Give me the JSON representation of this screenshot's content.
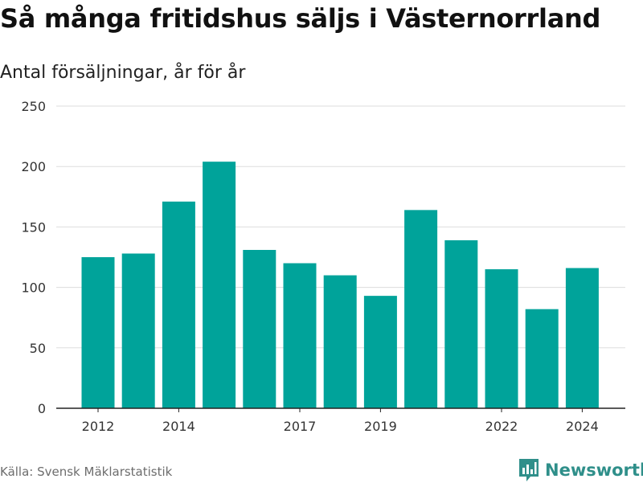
{
  "title": "Så många fritidshus säljs i Västernorrland",
  "subtitle": "Antal försäljningar, år för år",
  "source": "Källa: Svensk Mäklarstatistik",
  "brand": {
    "name": "Newsworthy",
    "icon": "newsworthy-logo-icon"
  },
  "colors": {
    "bar": "#00a39a",
    "grid": "#dddddd",
    "axis": "#222222",
    "brand": "#2f8f8a"
  },
  "chart_data": {
    "type": "bar",
    "categories": [
      "2012",
      "2013",
      "2014",
      "2015",
      "2016",
      "2017",
      "2018",
      "2019",
      "2020",
      "2021",
      "2022",
      "2023",
      "2024"
    ],
    "values": [
      125,
      128,
      171,
      204,
      131,
      120,
      110,
      93,
      164,
      139,
      115,
      82,
      116
    ],
    "x_tick_labels": [
      "2012",
      "2014",
      "2017",
      "2019",
      "2022",
      "2024"
    ],
    "y_ticks": [
      0,
      50,
      100,
      150,
      200,
      250
    ],
    "ylim": [
      0,
      250
    ],
    "grid": true
  }
}
